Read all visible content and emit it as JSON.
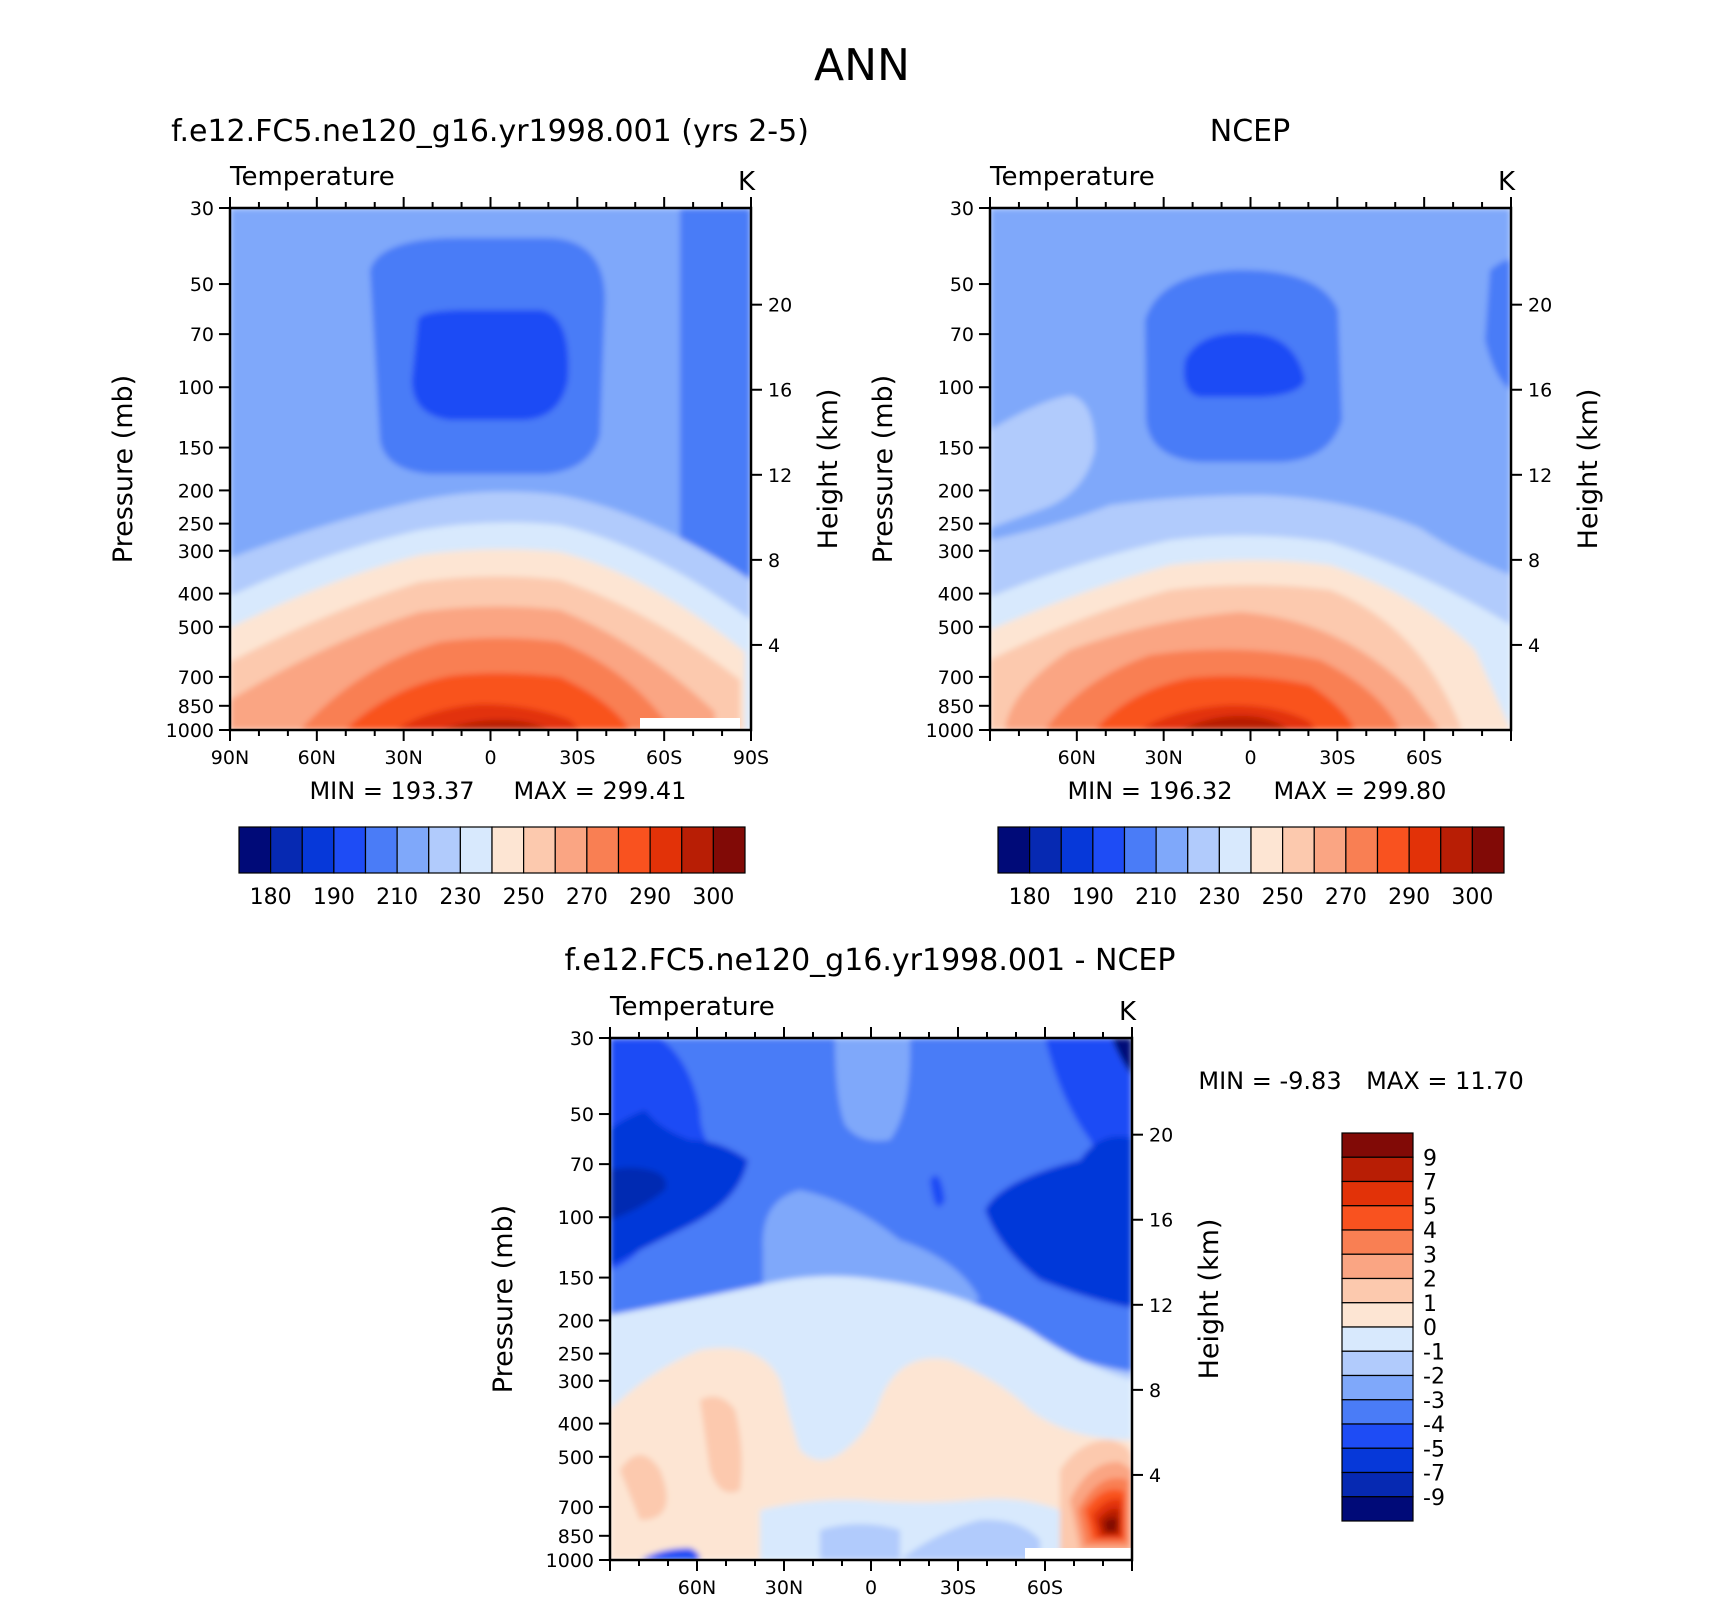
{
  "main_title": "ANN",
  "colors": {
    "abs": [
      "#000A78",
      "#0629B2",
      "#0638D9",
      "#1E4CF5",
      "#4A7CF7",
      "#7FA8FA",
      "#B1CBFC",
      "#D8E9FD",
      "#FDE5D3",
      "#FCC9AE",
      "#FAA583",
      "#F97F53",
      "#F9521F",
      "#E23208",
      "#B81E05",
      "#810A06"
    ],
    "diff": [
      "#000A78",
      "#0629B2",
      "#0638D9",
      "#1E4CF5",
      "#4A7CF7",
      "#7FA8FA",
      "#B1CBFC",
      "#D8E9FD",
      "#FDE5D3",
      "#FCC9AE",
      "#FAA583",
      "#F97F53",
      "#F9521F",
      "#E23208",
      "#B81E05",
      "#810A06"
    ]
  },
  "chart_data": [
    {
      "type": "heatmap",
      "title": "f.e12.FC5.ne120_g16.yr1998.001 (yrs 2-5)",
      "variable": "Temperature",
      "units": "K",
      "xlabel": "",
      "ylabel": "Pressure (mb)",
      "y2label": "Height (km)",
      "x_ticks": [
        "90N",
        "60N",
        "30N",
        "0",
        "30S",
        "60S",
        "90S"
      ],
      "y_ticks": [
        "30",
        "50",
        "70",
        "100",
        "150",
        "200",
        "250",
        "300",
        "400",
        "500",
        "700",
        "850",
        "1000"
      ],
      "y2_ticks": [
        "20",
        "16",
        "12",
        "8",
        "4"
      ],
      "min_text": "MIN = 193.37",
      "max_text": "MAX = 299.41",
      "colorbar_labels": [
        "180",
        "190",
        "210",
        "230",
        "250",
        "270",
        "290",
        "300"
      ]
    },
    {
      "type": "heatmap",
      "title": "NCEP",
      "variable": "Temperature",
      "units": "K",
      "xlabel": "",
      "ylabel": "Pressure (mb)",
      "y2label": "Height (km)",
      "x_ticks": [
        "60N",
        "30N",
        "0",
        "30S",
        "60S"
      ],
      "y_ticks": [
        "30",
        "50",
        "70",
        "100",
        "150",
        "200",
        "250",
        "300",
        "400",
        "500",
        "700",
        "850",
        "1000"
      ],
      "y2_ticks": [
        "20",
        "16",
        "12",
        "8",
        "4"
      ],
      "min_text": "MIN = 196.32",
      "max_text": "MAX = 299.80",
      "colorbar_labels": [
        "180",
        "190",
        "210",
        "230",
        "250",
        "270",
        "290",
        "300"
      ]
    },
    {
      "type": "heatmap",
      "title": "f.e12.FC5.ne120_g16.yr1998.001 - NCEP",
      "variable": "Temperature",
      "units": "K",
      "xlabel": "",
      "ylabel": "Pressure (mb)",
      "y2label": "Height (km)",
      "x_ticks": [
        "60N",
        "30N",
        "0",
        "30S",
        "60S"
      ],
      "y_ticks": [
        "30",
        "50",
        "70",
        "100",
        "150",
        "200",
        "250",
        "300",
        "400",
        "500",
        "700",
        "850",
        "1000"
      ],
      "y2_ticks": [
        "20",
        "16",
        "12",
        "8",
        "4"
      ],
      "min_text": "MIN = -9.83",
      "max_text": "MAX = 11.70",
      "colorbar_labels": [
        "9",
        "7",
        "5",
        "4",
        "3",
        "2",
        "1",
        "0",
        "-1",
        "-2",
        "-3",
        "-4",
        "-5",
        "-7",
        "-9"
      ]
    }
  ]
}
